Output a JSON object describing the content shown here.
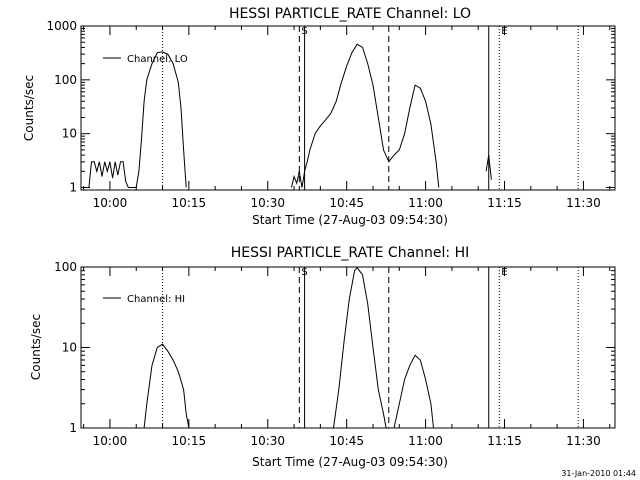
{
  "chart_data": [
    {
      "type": "line",
      "title": "HESSI PARTICLE_RATE Channel: LO",
      "xlabel": "Start Time (27-Aug-03 09:54:30)",
      "ylabel": "Counts/sec",
      "yscale": "log",
      "xlim": [
        "09:54:30",
        "11:36:00"
      ],
      "ylim": [
        0.9,
        1000
      ],
      "x_ticks": [
        "10:00",
        "10:15",
        "10:30",
        "10:45",
        "11:00",
        "11:15",
        "11:30"
      ],
      "y_ticks": [
        "1",
        "10",
        "100",
        "1000"
      ],
      "legend": {
        "position": "top-left",
        "entries": [
          "Channel: LO"
        ]
      },
      "markers": [
        {
          "time": "10:10",
          "style": "dotted",
          "label": ""
        },
        {
          "time": "10:36",
          "style": "dashed",
          "label": "S"
        },
        {
          "time": "10:37",
          "style": "solid",
          "label": ""
        },
        {
          "time": "10:53",
          "style": "dashed",
          "label": ""
        },
        {
          "time": "11:12",
          "style": "solid",
          "label": ""
        },
        {
          "time": "11:14",
          "style": "dotted",
          "label": "E"
        },
        {
          "time": "11:29",
          "style": "dotted",
          "label": ""
        }
      ],
      "series": [
        {
          "name": "Channel: LO",
          "segments": [
            [
              [
                "09:56:00",
                1
              ],
              [
                "09:56:30",
                3
              ],
              [
                "09:57:00",
                3
              ],
              [
                "09:57:30",
                2
              ],
              [
                "09:58:00",
                3
              ],
              [
                "09:58:30",
                1.6
              ],
              [
                "09:59:00",
                3
              ],
              [
                "09:59:30",
                2
              ],
              [
                "10:00:00",
                3
              ],
              [
                "10:00:30",
                1.5
              ],
              [
                "10:01:00",
                3
              ],
              [
                "10:01:30",
                1.7
              ],
              [
                "10:02:00",
                3
              ],
              [
                "10:02:30",
                3
              ],
              [
                "10:03:00",
                1.3
              ],
              [
                "10:03:30",
                1
              ],
              [
                "10:05:00",
                1
              ],
              [
                "10:05:30",
                2
              ],
              [
                "10:06:00",
                8
              ],
              [
                "10:06:30",
                40
              ],
              [
                "10:07:00",
                100
              ],
              [
                "10:08:00",
                200
              ],
              [
                "10:09:00",
                320
              ],
              [
                "10:10:00",
                330
              ],
              [
                "10:11:00",
                300
              ],
              [
                "10:12:00",
                200
              ],
              [
                "10:13:00",
                90
              ],
              [
                "10:13:30",
                30
              ],
              [
                "10:14:00",
                5
              ],
              [
                "10:14:30",
                1
              ]
            ],
            [
              [
                "10:34:30",
                1
              ],
              [
                "10:35:00",
                1.6
              ],
              [
                "10:35:30",
                1.2
              ],
              [
                "10:36:00",
                2
              ],
              [
                "10:36:30",
                1
              ],
              [
                "10:37:00",
                2
              ],
              [
                "10:37:30",
                3
              ],
              [
                "10:38:00",
                5
              ],
              [
                "10:39:00",
                10
              ],
              [
                "10:40:00",
                14
              ],
              [
                "10:41:00",
                18
              ],
              [
                "10:42:00",
                24
              ],
              [
                "10:43:00",
                40
              ],
              [
                "10:44:00",
                90
              ],
              [
                "10:45:00",
                180
              ],
              [
                "10:46:00",
                320
              ],
              [
                "10:47:00",
                460
              ],
              [
                "10:48:00",
                400
              ],
              [
                "10:49:00",
                200
              ],
              [
                "10:50:00",
                80
              ],
              [
                "10:51:00",
                20
              ],
              [
                "10:52:00",
                5
              ],
              [
                "10:53:00",
                3
              ],
              [
                "10:54:00",
                4
              ],
              [
                "10:55:00",
                5
              ],
              [
                "10:56:00",
                10
              ],
              [
                "10:57:00",
                30
              ],
              [
                "10:58:00",
                80
              ],
              [
                "10:59:00",
                70
              ],
              [
                "11:00:00",
                40
              ],
              [
                "11:01:00",
                15
              ],
              [
                "11:02:00",
                3
              ],
              [
                "11:02:30",
                1
              ]
            ],
            [
              [
                "11:11:30",
                2
              ],
              [
                "11:12:00",
                4
              ],
              [
                "11:12:30",
                1.4
              ]
            ]
          ]
        }
      ]
    },
    {
      "type": "line",
      "title": "HESSI PARTICLE_RATE Channel: HI",
      "xlabel": "Start Time (27-Aug-03 09:54:30)",
      "ylabel": "Counts/sec",
      "yscale": "log",
      "xlim": [
        "09:54:30",
        "11:36:00"
      ],
      "ylim": [
        1,
        100
      ],
      "x_ticks": [
        "10:00",
        "10:15",
        "10:30",
        "10:45",
        "11:00",
        "11:15",
        "11:30"
      ],
      "y_ticks": [
        "1",
        "10",
        "100"
      ],
      "legend": {
        "position": "top-left",
        "entries": [
          "Channel: HI"
        ]
      },
      "markers": [
        {
          "time": "10:10",
          "style": "dotted",
          "label": ""
        },
        {
          "time": "10:36",
          "style": "dashed",
          "label": "S"
        },
        {
          "time": "10:37",
          "style": "solid",
          "label": ""
        },
        {
          "time": "10:53",
          "style": "dashed",
          "label": ""
        },
        {
          "time": "11:12",
          "style": "solid",
          "label": ""
        },
        {
          "time": "11:14",
          "style": "dotted",
          "label": "E"
        },
        {
          "time": "11:29",
          "style": "dotted",
          "label": ""
        }
      ],
      "series": [
        {
          "name": "Channel: HI",
          "segments": [
            [
              [
                "10:06:30",
                1
              ],
              [
                "10:07:00",
                2
              ],
              [
                "10:08:00",
                6
              ],
              [
                "10:09:00",
                10
              ],
              [
                "10:10:00",
                11
              ],
              [
                "10:11:00",
                9
              ],
              [
                "10:12:00",
                7
              ],
              [
                "10:13:00",
                5
              ],
              [
                "10:14:00",
                3
              ],
              [
                "10:14:30",
                1.5
              ],
              [
                "10:15:00",
                1
              ]
            ],
            [
              [
                "10:42:30",
                1
              ],
              [
                "10:43:30",
                3
              ],
              [
                "10:44:30",
                12
              ],
              [
                "10:45:30",
                40
              ],
              [
                "10:46:30",
                90
              ],
              [
                "10:47:00",
                98
              ],
              [
                "10:48:00",
                80
              ],
              [
                "10:49:00",
                35
              ],
              [
                "10:50:00",
                10
              ],
              [
                "10:51:00",
                3
              ],
              [
                "10:52:00",
                1.5
              ],
              [
                "10:52:30",
                1
              ]
            ],
            [
              [
                "10:54:00",
                1
              ],
              [
                "10:55:00",
                2
              ],
              [
                "10:56:00",
                4
              ],
              [
                "10:57:00",
                6
              ],
              [
                "10:58:00",
                8
              ],
              [
                "10:59:00",
                7
              ],
              [
                "11:00:00",
                4
              ],
              [
                "11:01:00",
                2
              ],
              [
                "11:01:30",
                1
              ]
            ]
          ]
        }
      ]
    }
  ],
  "footer": {
    "timestamp": "31-Jan-2010 01:44"
  }
}
